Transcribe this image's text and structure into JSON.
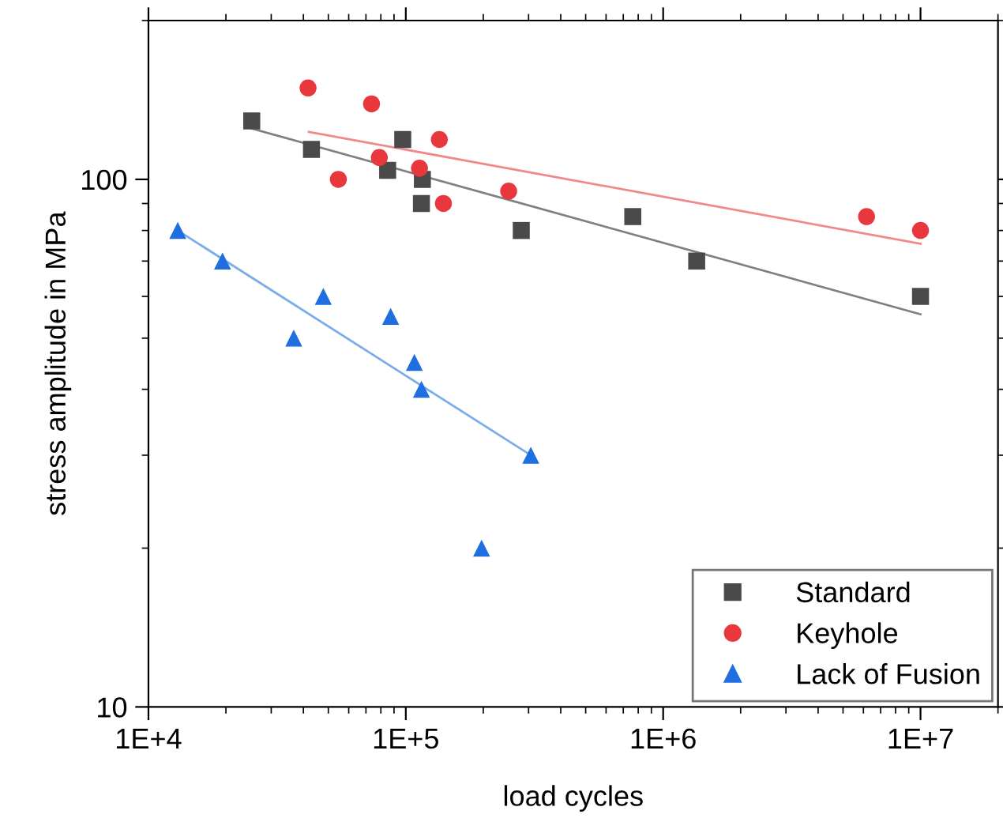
{
  "chart_data": {
    "type": "scatter",
    "xlabel": "load cycles",
    "ylabel": "stress amplitude in MPa",
    "log": "xy",
    "grid": false,
    "legend": "bottom right",
    "xlim": [
      10000,
      20000000
    ],
    "ylim": [
      10,
      200
    ],
    "xticks": [
      {
        "value": 10000,
        "label": "1E+4"
      },
      {
        "value": 100000,
        "label": "1E+5"
      },
      {
        "value": 1000000,
        "label": "1E+6"
      },
      {
        "value": 10000000,
        "label": "1E+7"
      }
    ],
    "yticks": [
      10,
      100
    ],
    "series": [
      {
        "name": "Standard",
        "color": "#4a4a4a",
        "marker": "square",
        "x": [
          25200,
          43000,
          97300,
          85000,
          116000,
          115000,
          281000,
          762000,
          1350000,
          10000000
        ],
        "values": [
          129,
          114,
          119,
          104,
          100,
          90,
          80,
          85,
          70,
          60
        ]
      },
      {
        "name": "Keyhole",
        "color": "#e8383d",
        "marker": "circle",
        "x": [
          41700,
          73600,
          135000,
          78900,
          54700,
          113000,
          140000,
          251000,
          6170000,
          10000000
        ],
        "values": [
          149,
          139,
          119,
          110,
          100,
          105,
          90,
          95,
          85,
          80
        ]
      },
      {
        "name": "Lack of Fusion",
        "color": "#1f6fe0",
        "marker": "triangle",
        "x": [
          13000,
          19400,
          47800,
          36700,
          87300,
          108000,
          115000,
          306000,
          197000
        ],
        "values": [
          80,
          70,
          60,
          50,
          55,
          45,
          40,
          30,
          20
        ]
      },
      {
        "type": "line",
        "color": "#808080",
        "marker": "none",
        "x": [
          25000,
          10000000
        ],
        "values": [
          125,
          55.5
        ]
      },
      {
        "type": "line",
        "color": "#f08a8a",
        "marker": "none",
        "x": [
          42000,
          10000000
        ],
        "values": [
          123,
          75.5
        ]
      },
      {
        "type": "line",
        "color": "#7aaee8",
        "marker": "none",
        "x": [
          13000,
          306000
        ],
        "values": [
          80,
          30
        ]
      }
    ]
  }
}
